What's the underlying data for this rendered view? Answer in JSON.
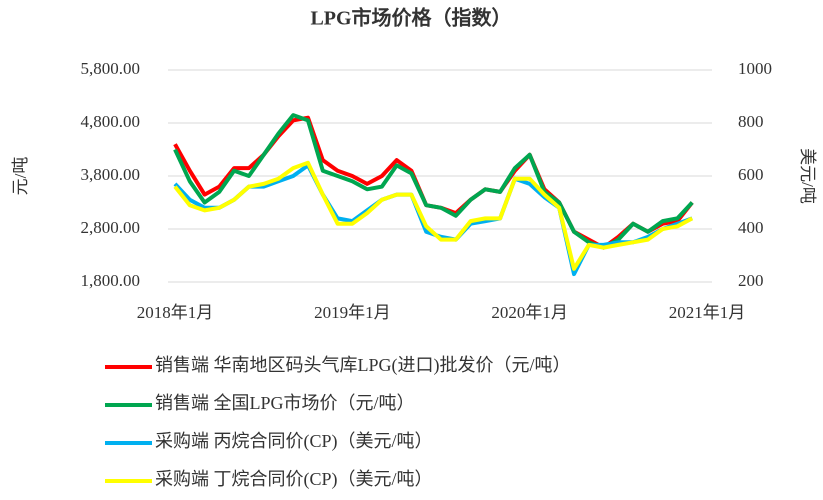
{
  "chart_data": {
    "type": "line",
    "title": "LPG市场价格（指数）",
    "y_label": "元/吨",
    "y2_label": "美元/吨",
    "categories": [
      "2018年1月",
      null,
      null,
      null,
      null,
      null,
      null,
      null,
      null,
      null,
      null,
      null,
      "2019年1月",
      null,
      null,
      null,
      null,
      null,
      null,
      null,
      null,
      null,
      null,
      null,
      "2020年1月",
      null,
      null,
      null,
      null,
      null,
      null,
      null,
      null,
      null,
      null,
      null,
      "2021年1月"
    ],
    "ylim": [
      1800,
      5800
    ],
    "yticks": [
      {
        "value": 1800,
        "label": "1,800.00"
      },
      {
        "value": 2800,
        "label": "2,800.00"
      },
      {
        "value": 3800,
        "label": "3,800.00"
      },
      {
        "value": 4800,
        "label": "4,800.00"
      },
      {
        "value": 5800,
        "label": "5,800.00"
      }
    ],
    "y2lim": [
      200,
      1000
    ],
    "y2ticks": [
      200,
      400,
      600,
      800,
      1000
    ],
    "grid": true,
    "series": [
      {
        "name": "销售端  华南地区码头气库LPG(进口)批发价（元/吨）",
        "color": "#ff0000",
        "values": [
          4400,
          3900,
          3450,
          3600,
          3950,
          3950,
          4200,
          4550,
          4850,
          4900,
          4100,
          3900,
          3800,
          3650,
          3800,
          4100,
          3900,
          3250,
          3200,
          3100,
          3350,
          3550,
          3500,
          3900,
          4200,
          3550,
          3300,
          2750,
          2600,
          2450,
          2650,
          2900,
          2750,
          2900,
          2950,
          3300,
          null
        ]
      },
      {
        "name": "销售端  全国LPG市场价（元/吨）",
        "color": "#00a650",
        "values": [
          4300,
          3700,
          3300,
          3500,
          3900,
          3800,
          4200,
          4600,
          4950,
          4850,
          3900,
          3800,
          3700,
          3550,
          3600,
          4000,
          3850,
          3250,
          3200,
          3050,
          3350,
          3550,
          3500,
          3950,
          4200,
          3500,
          3300,
          2750,
          2550,
          2450,
          2600,
          2900,
          2750,
          2950,
          3000,
          3300,
          null
        ]
      },
      {
        "name": "采购端  丙烷合同价(CP)（美元/吨）",
        "color": "#00b0f0",
        "axis": "y2",
        "values": [
          570,
          510,
          480,
          480,
          510,
          560,
          560,
          580,
          600,
          640,
          530,
          440,
          430,
          470,
          510,
          530,
          530,
          390,
          370,
          360,
          420,
          430,
          440,
          590,
          570,
          520,
          480,
          230,
          340,
          340,
          350,
          350,
          370,
          400,
          420,
          440,
          null
        ]
      },
      {
        "name": "采购端  丁烷合同价(CP)（美元/吨）",
        "color": "#ffff00",
        "axis": "y2",
        "values": [
          560,
          490,
          470,
          480,
          510,
          560,
          570,
          590,
          630,
          650,
          530,
          420,
          420,
          460,
          510,
          530,
          530,
          410,
          360,
          360,
          430,
          440,
          440,
          590,
          590,
          530,
          480,
          250,
          340,
          330,
          340,
          350,
          360,
          400,
          410,
          440,
          null
        ]
      }
    ]
  }
}
